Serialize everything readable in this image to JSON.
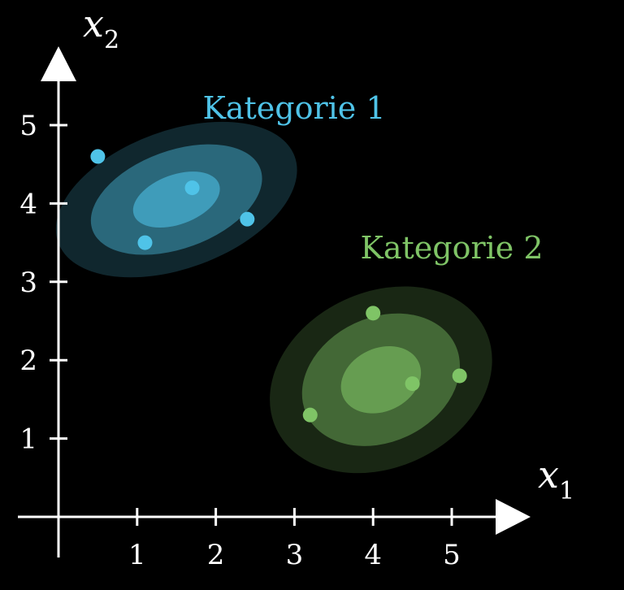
{
  "chart_data": {
    "type": "scatter",
    "xlabel": {
      "main": "x",
      "sub": "1"
    },
    "ylabel": {
      "main": "x",
      "sub": "2"
    },
    "xlim": [
      -0.35,
      5.8
    ],
    "ylim": [
      -0.5,
      5.8
    ],
    "x_ticks": [
      "1",
      "2",
      "3",
      "4",
      "5"
    ],
    "y_ticks": [
      "1",
      "2",
      "3",
      "4",
      "5"
    ],
    "grid": false,
    "series": [
      {
        "name": "Kategorie 1",
        "color": "#4fc3e8",
        "points": [
          {
            "x": 0.5,
            "y": 4.6
          },
          {
            "x": 1.7,
            "y": 4.2
          },
          {
            "x": 2.4,
            "y": 3.8
          },
          {
            "x": 1.1,
            "y": 3.5
          }
        ],
        "distribution": {
          "cx": 1.5,
          "cy": 4.05,
          "rx": 1.6,
          "ry": 0.88,
          "angle_deg": -20
        }
      },
      {
        "name": "Kategorie 2",
        "color": "#7fc466",
        "points": [
          {
            "x": 4.0,
            "y": 2.6
          },
          {
            "x": 5.1,
            "y": 1.8
          },
          {
            "x": 4.5,
            "y": 1.7
          },
          {
            "x": 3.2,
            "y": 1.3
          }
        ],
        "distribution": {
          "cx": 4.1,
          "cy": 1.75,
          "rx": 1.47,
          "ry": 1.12,
          "angle_deg": -25
        }
      }
    ]
  }
}
